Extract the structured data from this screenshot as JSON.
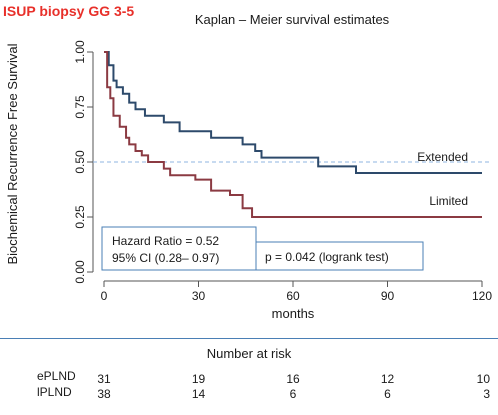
{
  "header": {
    "label": "ISUP biopsy GG 3-5",
    "label_color": "#e8302a"
  },
  "chart_data": {
    "type": "line",
    "title": "Kaplan – Meier survival estimates",
    "xlabel": "months",
    "ylabel": "Biochemical Recurrence Free Survival",
    "xlim": [
      0,
      120
    ],
    "ylim": [
      0,
      1
    ],
    "xticks": [
      0,
      30,
      60,
      90,
      120
    ],
    "yticks": [
      0.0,
      0.25,
      0.5,
      0.75,
      1.0
    ],
    "ytick_labels": [
      "0.00",
      "0.25",
      "0.50",
      "0.75",
      "1.00"
    ],
    "reference_line": {
      "y": 0.5,
      "style": "dashed",
      "color": "#8fb4e0"
    },
    "grid": false,
    "series": [
      {
        "name": "Extended",
        "color": "#2d4a6b",
        "steps": [
          [
            0,
            1.0
          ],
          [
            1.5,
            0.94
          ],
          [
            3,
            0.87
          ],
          [
            4,
            0.84
          ],
          [
            6,
            0.81
          ],
          [
            8,
            0.77
          ],
          [
            10,
            0.74
          ],
          [
            13,
            0.71
          ],
          [
            19,
            0.68
          ],
          [
            24,
            0.64
          ],
          [
            34,
            0.61
          ],
          [
            44,
            0.58
          ],
          [
            48,
            0.55
          ],
          [
            50,
            0.52
          ],
          [
            68,
            0.48
          ],
          [
            80,
            0.45
          ],
          [
            120,
            0.45
          ]
        ]
      },
      {
        "name": "Limited",
        "color": "#8b3a42",
        "steps": [
          [
            0,
            1.0
          ],
          [
            1,
            0.84
          ],
          [
            2,
            0.79
          ],
          [
            3,
            0.71
          ],
          [
            5,
            0.66
          ],
          [
            7,
            0.61
          ],
          [
            8,
            0.58
          ],
          [
            10,
            0.55
          ],
          [
            12,
            0.53
          ],
          [
            14,
            0.5
          ],
          [
            19,
            0.47
          ],
          [
            21,
            0.44
          ],
          [
            29,
            0.42
          ],
          [
            34,
            0.37
          ],
          [
            40,
            0.35
          ],
          [
            44,
            0.29
          ],
          [
            47,
            0.25
          ],
          [
            120,
            0.25
          ]
        ]
      }
    ],
    "annotations": {
      "hazard_ratio": "Hazard Ratio = 0.52",
      "ci": "95% CI (0.28– 0.97)",
      "p_value": "p = 0.042 (logrank test)"
    },
    "risk_table": {
      "title": "Number  at risk",
      "rows": [
        {
          "label": "ePLND",
          "values": [
            31,
            19,
            16,
            12,
            10
          ]
        },
        {
          "label": "lPLND",
          "values": [
            38,
            14,
            6,
            6,
            3
          ]
        }
      ]
    }
  }
}
